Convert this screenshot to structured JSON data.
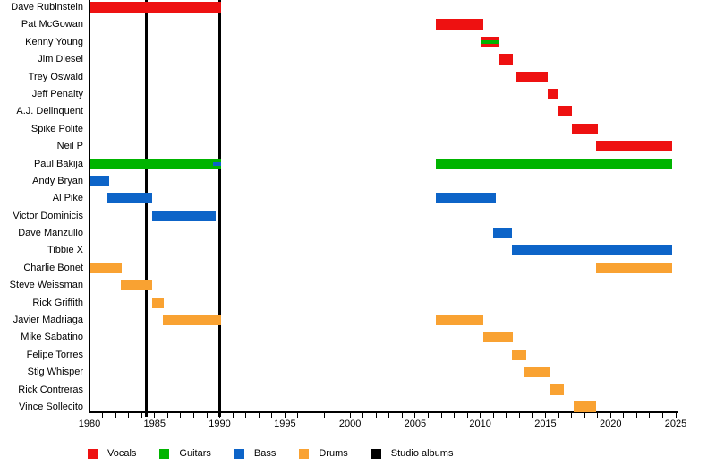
{
  "chart_data": {
    "type": "bar",
    "subtype": "band-member-timeline-gantt",
    "title": "",
    "xlabel": "",
    "ylabel": "",
    "grid": false,
    "legend_position": "bottom",
    "x_axis": {
      "min": 1980,
      "max": 2025,
      "major_ticks": [
        1980,
        1985,
        1990,
        1995,
        2000,
        2005,
        2010,
        2015,
        2020,
        2025
      ],
      "minor_tick_interval": 1
    },
    "colors": {
      "Vocals": "#EE1111",
      "Guitars": "#00B400",
      "Bass": "#0D64C8",
      "Drums": "#F9A232",
      "Studio albums": "#000000"
    },
    "legend": [
      {
        "label": "Vocals"
      },
      {
        "label": "Guitars"
      },
      {
        "label": "Bass"
      },
      {
        "label": "Drums"
      },
      {
        "label": "Studio albums"
      }
    ],
    "studio_album_years": [
      1984.35,
      1990
    ],
    "members": [
      {
        "name": "Dave Rubinstein",
        "bars": [
          {
            "role": "Vocals",
            "start": 1980,
            "end": 1990.1
          }
        ]
      },
      {
        "name": "Pat McGowan",
        "bars": [
          {
            "role": "Vocals",
            "start": 2006.6,
            "end": 2010.2
          }
        ]
      },
      {
        "name": "Kenny Young",
        "bars": [
          {
            "role": "Vocals",
            "start": 2010.05,
            "end": 2011.5
          },
          {
            "role": "Guitars",
            "start": 2010.05,
            "end": 2011.5,
            "overlay": true
          }
        ]
      },
      {
        "name": "Jim Diesel",
        "bars": [
          {
            "role": "Vocals",
            "start": 2011.4,
            "end": 2012.5
          }
        ]
      },
      {
        "name": "Trey Oswald",
        "bars": [
          {
            "role": "Vocals",
            "start": 2012.8,
            "end": 2015.2
          }
        ]
      },
      {
        "name": "Jeff Penalty",
        "bars": [
          {
            "role": "Vocals",
            "start": 2015.2,
            "end": 2016
          }
        ]
      },
      {
        "name": "A.J. Delinquent",
        "bars": [
          {
            "role": "Vocals",
            "start": 2016,
            "end": 2017
          }
        ]
      },
      {
        "name": "Spike Polite",
        "bars": [
          {
            "role": "Vocals",
            "start": 2017,
            "end": 2019
          }
        ]
      },
      {
        "name": "Neil P",
        "bars": [
          {
            "role": "Vocals",
            "start": 2018.9,
            "end": 2024.7
          }
        ]
      },
      {
        "name": "Paul Bakija",
        "bars": [
          {
            "role": "Guitars",
            "start": 1980,
            "end": 1990.1
          },
          {
            "role": "Bass",
            "start": 1989.5,
            "end": 1990.1,
            "overlay": true
          },
          {
            "role": "Guitars",
            "start": 2006.6,
            "end": 2024.7
          }
        ]
      },
      {
        "name": "Andy Bryan",
        "bars": [
          {
            "role": "Bass",
            "start": 1980,
            "end": 1981.5
          }
        ]
      },
      {
        "name": "Al Pike",
        "bars": [
          {
            "role": "Bass",
            "start": 1981.4,
            "end": 1984.8
          },
          {
            "role": "Bass",
            "start": 2006.6,
            "end": 2011.2
          }
        ]
      },
      {
        "name": "Victor Dominicis",
        "bars": [
          {
            "role": "Bass",
            "start": 1984.8,
            "end": 1989.7
          }
        ]
      },
      {
        "name": "Dave Manzullo",
        "bars": [
          {
            "role": "Bass",
            "start": 2011,
            "end": 2012.4
          }
        ]
      },
      {
        "name": "Tibbie X",
        "bars": [
          {
            "role": "Bass",
            "start": 2012.4,
            "end": 2024.7
          }
        ]
      },
      {
        "name": "Charlie Bonet",
        "bars": [
          {
            "role": "Drums",
            "start": 1980,
            "end": 1982.5
          },
          {
            "role": "Drums",
            "start": 2018.9,
            "end": 2024.7
          }
        ]
      },
      {
        "name": "Steve Weissman",
        "bars": [
          {
            "role": "Drums",
            "start": 1982.4,
            "end": 1984.8
          }
        ]
      },
      {
        "name": "Rick Griffith",
        "bars": [
          {
            "role": "Drums",
            "start": 1984.8,
            "end": 1985.7
          }
        ]
      },
      {
        "name": "Javier Madriaga",
        "bars": [
          {
            "role": "Drums",
            "start": 1985.6,
            "end": 1990.1
          },
          {
            "role": "Drums",
            "start": 2006.6,
            "end": 2010.2
          }
        ]
      },
      {
        "name": "Mike Sabatino",
        "bars": [
          {
            "role": "Drums",
            "start": 2010.2,
            "end": 2012.5
          }
        ]
      },
      {
        "name": "Felipe Torres",
        "bars": [
          {
            "role": "Drums",
            "start": 2012.4,
            "end": 2013.5
          }
        ]
      },
      {
        "name": "Stig Whisper",
        "bars": [
          {
            "role": "Drums",
            "start": 2013.4,
            "end": 2015.4
          }
        ]
      },
      {
        "name": "Rick Contreras",
        "bars": [
          {
            "role": "Drums",
            "start": 2015.4,
            "end": 2016.4
          }
        ]
      },
      {
        "name": "Vince Sollecito",
        "bars": [
          {
            "role": "Drums",
            "start": 2017.2,
            "end": 2018.9
          }
        ]
      }
    ]
  }
}
